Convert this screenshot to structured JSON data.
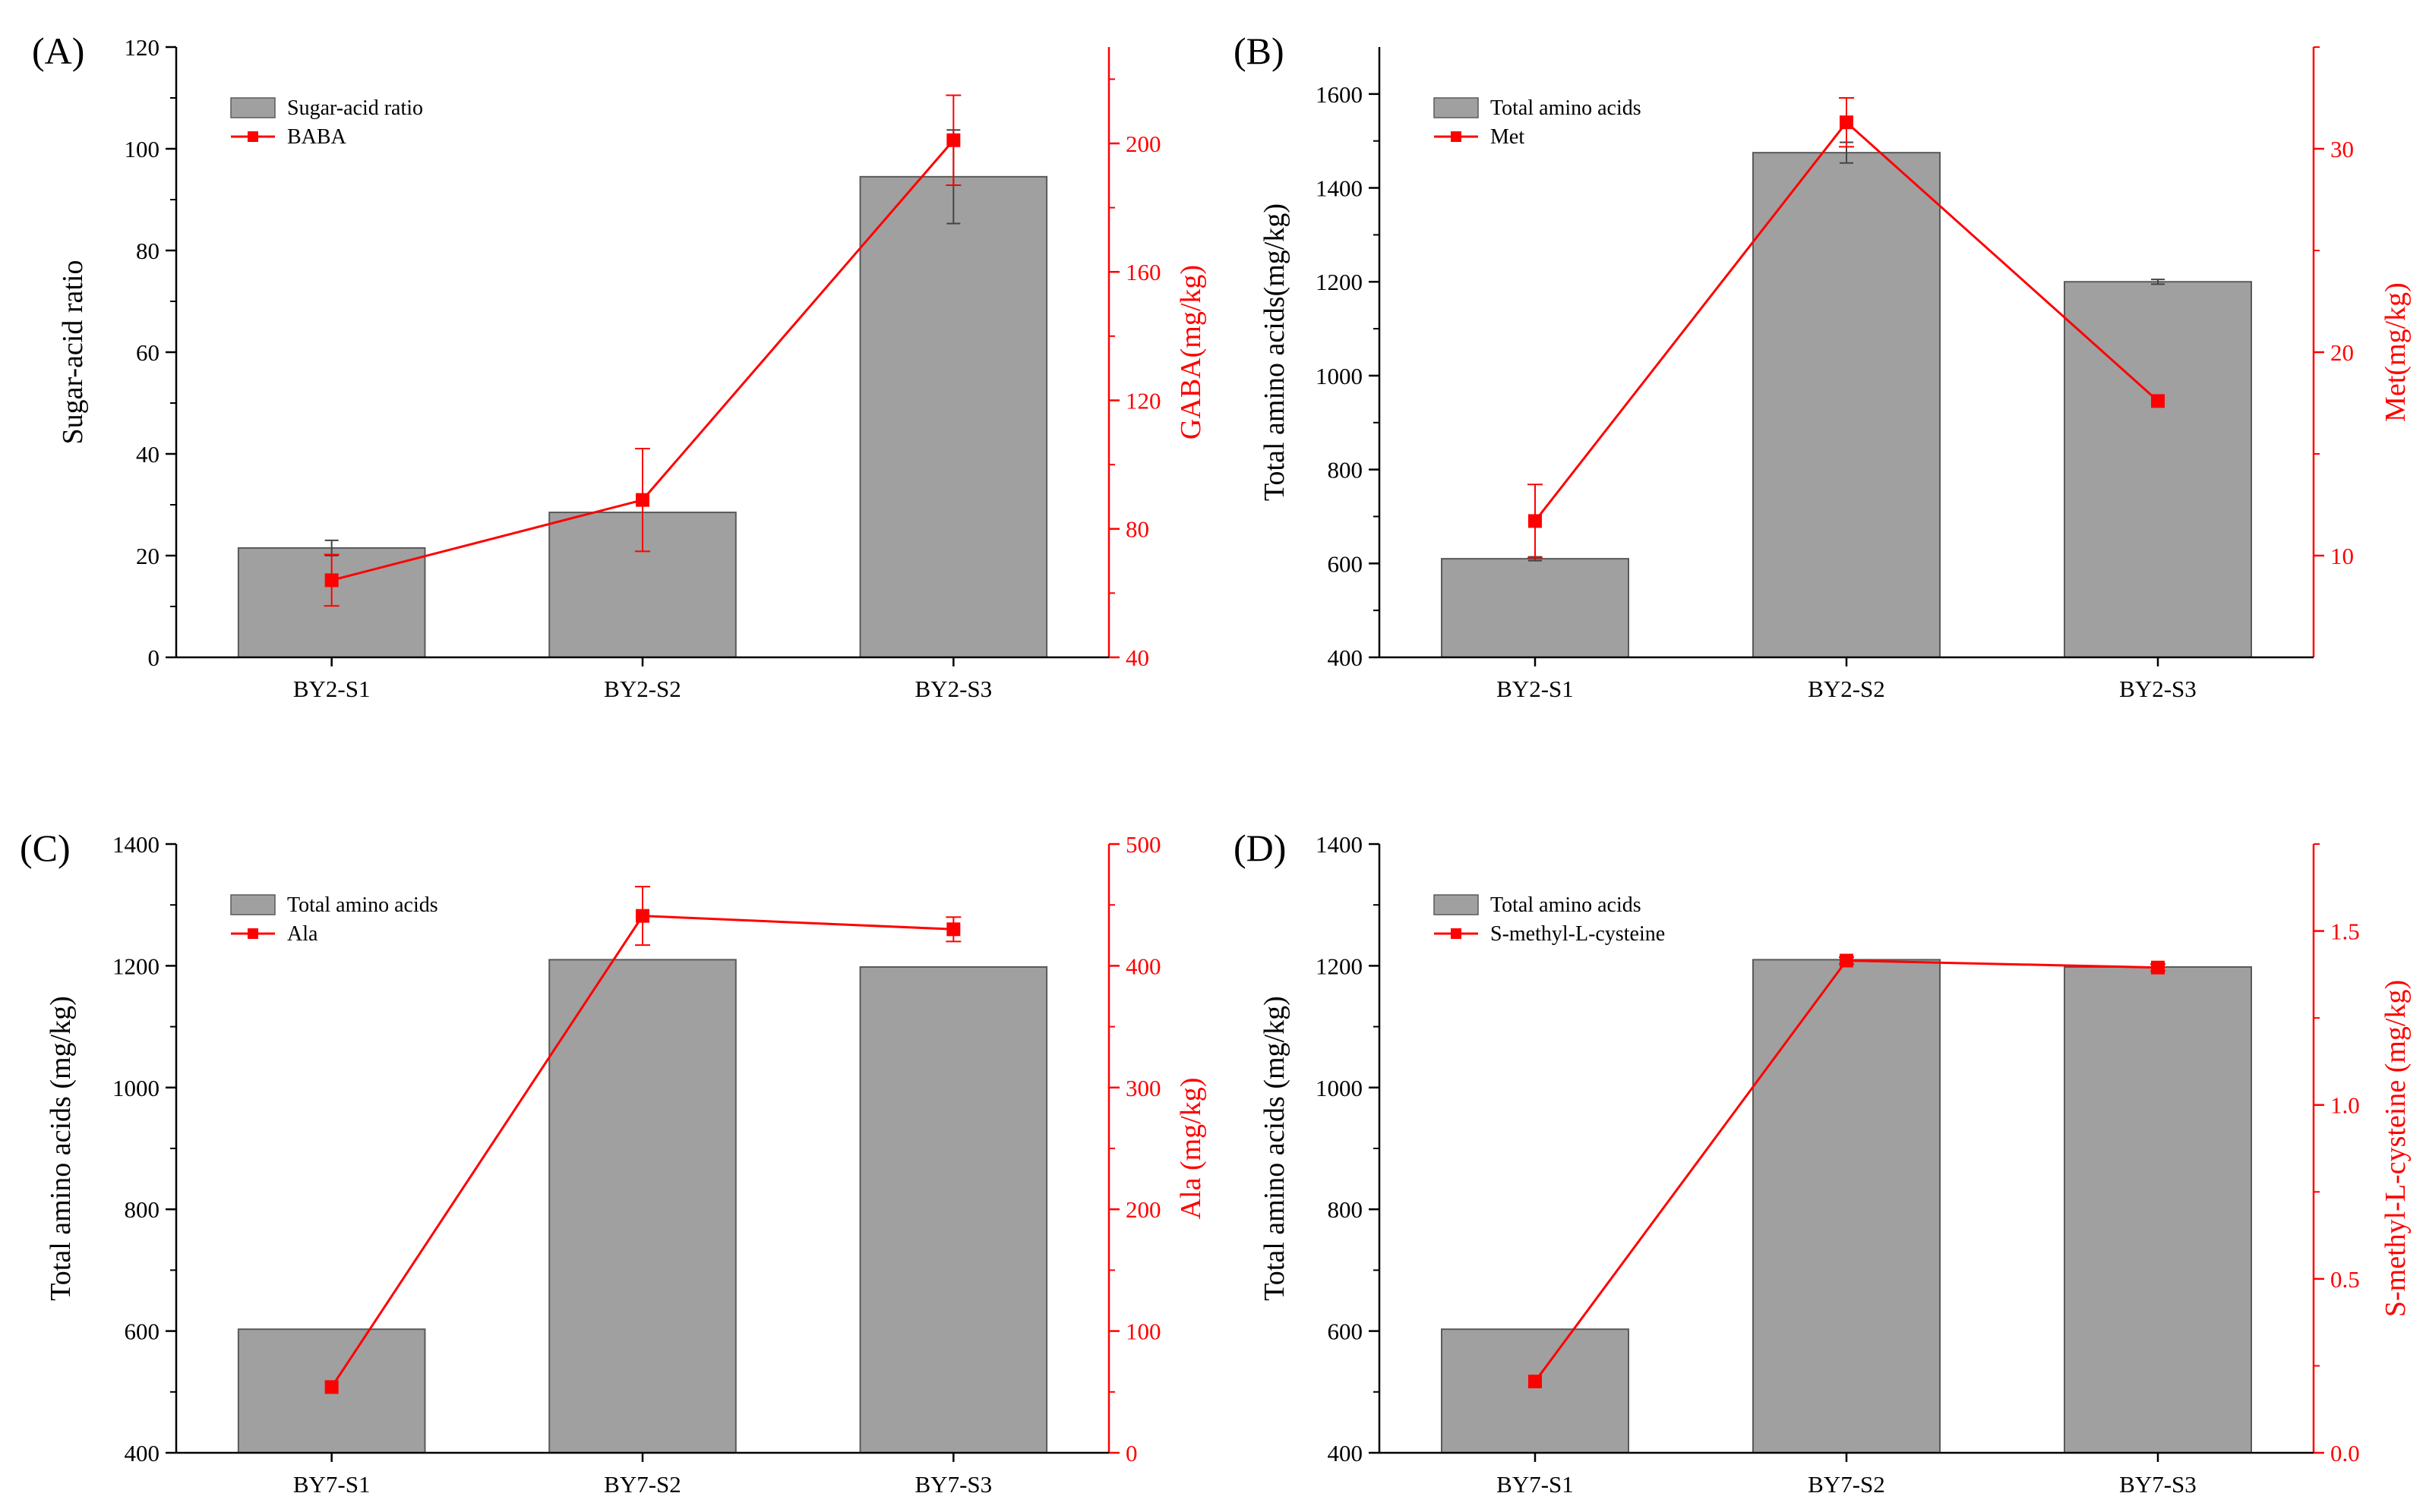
{
  "colors": {
    "bar": "#a0a0a0",
    "bar_edge": "#5a5a5a",
    "line": "#ff0000",
    "axis": "#000000",
    "error_bar": "#444444"
  },
  "chart_data": [
    {
      "type": "bar",
      "panel_label": "(A)",
      "categories": [
        "BY2-S1",
        "BY2-S2",
        "BY2-S3"
      ],
      "left_axis": {
        "label": "Sugar-acid ratio",
        "ylim": [
          0,
          120
        ],
        "ticks": [
          0,
          20,
          40,
          60,
          80,
          100,
          120
        ],
        "tick_labels": [
          "0",
          "20",
          "40",
          "60",
          "80",
          "100",
          "120"
        ]
      },
      "right_axis": {
        "label": "GABA(mg/kg)",
        "ylim": [
          40,
          230
        ],
        "ticks": [
          40,
          80,
          120,
          160,
          200
        ],
        "tick_labels": [
          "40",
          "80",
          "120",
          "160",
          "200"
        ]
      },
      "series": [
        {
          "name": "Sugar-acid ratio",
          "kind": "bar",
          "axis": "left",
          "values": [
            21.5,
            28.5,
            94.5
          ],
          "errors": [
            1.5,
            0,
            9.2
          ]
        },
        {
          "name": "BABA",
          "kind": "line",
          "axis": "right",
          "values": [
            64,
            89,
            201
          ],
          "errors": [
            8,
            16,
            14
          ]
        }
      ],
      "legend": "top-left"
    },
    {
      "type": "bar",
      "panel_label": "(B)",
      "categories": [
        "BY2-S1",
        "BY2-S2",
        "BY2-S3"
      ],
      "left_axis": {
        "label": "Total amino acids(mg/kg)",
        "ylim": [
          400,
          1700
        ],
        "ticks": [
          400,
          600,
          800,
          1000,
          1200,
          1400,
          1600
        ],
        "tick_labels": [
          "400",
          "600",
          "800",
          "1000",
          "1200",
          "1400",
          "1600"
        ]
      },
      "right_axis": {
        "label": "Met(mg/kg)",
        "ylim": [
          5,
          35
        ],
        "ticks": [
          10,
          20,
          30
        ],
        "tick_labels": [
          "10",
          "20",
          "30"
        ]
      },
      "series": [
        {
          "name": "Total amino acids",
          "kind": "bar",
          "axis": "left",
          "values": [
            610,
            1475,
            1200
          ],
          "errors": [
            4,
            22,
            5
          ]
        },
        {
          "name": "Met",
          "kind": "line",
          "axis": "right",
          "values": [
            11.7,
            31.3,
            17.6
          ],
          "errors": [
            1.8,
            1.2,
            0
          ]
        }
      ],
      "legend": "top-left"
    },
    {
      "type": "bar",
      "panel_label": "(C)",
      "categories": [
        "BY7-S1",
        "BY7-S2",
        "BY7-S3"
      ],
      "left_axis": {
        "label": "Total amino acids (mg/kg)",
        "ylim": [
          400,
          1400
        ],
        "ticks": [
          400,
          600,
          800,
          1000,
          1200,
          1400
        ],
        "tick_labels": [
          "400",
          "600",
          "800",
          "1000",
          "1200",
          "1400"
        ]
      },
      "right_axis": {
        "label": "Ala (mg/kg)",
        "ylim": [
          0,
          500
        ],
        "ticks": [
          0,
          100,
          200,
          300,
          400,
          500
        ],
        "tick_labels": [
          "0",
          "100",
          "200",
          "300",
          "400",
          "500"
        ]
      },
      "series": [
        {
          "name": "Total amino acids",
          "kind": "bar",
          "axis": "left",
          "values": [
            603,
            1210,
            1198
          ],
          "errors": [
            0,
            0,
            0
          ]
        },
        {
          "name": "Ala",
          "kind": "line",
          "axis": "right",
          "values": [
            54,
            441,
            430
          ],
          "errors": [
            0,
            24,
            10
          ]
        }
      ],
      "legend": "top-left"
    },
    {
      "type": "bar",
      "panel_label": "(D)",
      "categories": [
        "BY7-S1",
        "BY7-S2",
        "BY7-S3"
      ],
      "left_axis": {
        "label": "Total amino acids (mg/kg)",
        "ylim": [
          400,
          1400
        ],
        "ticks": [
          400,
          600,
          800,
          1000,
          1200,
          1400
        ],
        "tick_labels": [
          "400",
          "600",
          "800",
          "1000",
          "1200",
          "1400"
        ]
      },
      "right_axis": {
        "label": "S-methyl-L-cysteine (mg/kg)",
        "ylim": [
          0,
          1.75
        ],
        "ticks": [
          0,
          0.5,
          1,
          1.5
        ],
        "tick_labels": [
          "0.0",
          "0.5",
          "1.0",
          "1.5"
        ]
      },
      "series": [
        {
          "name": "Total amino acids",
          "kind": "bar",
          "axis": "left",
          "values": [
            603,
            1210,
            1198
          ],
          "errors": [
            0,
            0,
            0
          ]
        },
        {
          "name": "S-methyl-L-cysteine",
          "kind": "line",
          "axis": "right",
          "values": [
            0.205,
            1.415,
            1.395
          ],
          "errors": [
            0,
            0.01,
            0.01
          ]
        }
      ],
      "legend": "top-left"
    }
  ]
}
